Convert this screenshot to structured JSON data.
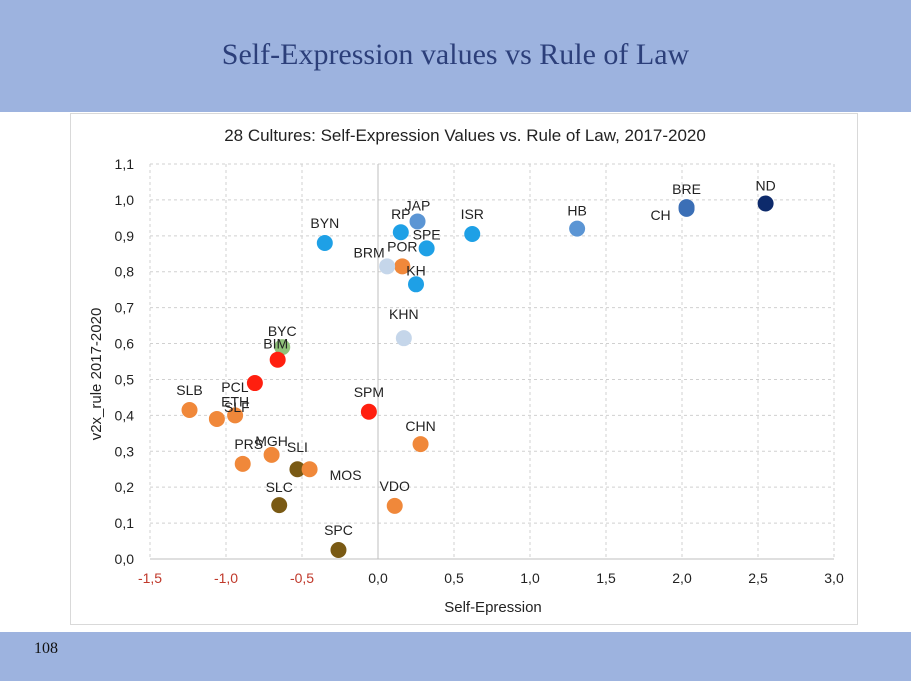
{
  "slide": {
    "title": "Self-Expression values vs Rule of Law",
    "page_number": "108"
  },
  "colors": {
    "header_band": "#9db3df",
    "title_text": "#2c3f7a",
    "negative_tick": "#c0392b"
  },
  "chart_data": {
    "type": "scatter",
    "title": "28 Cultures: Self-Expression Values vs. Rule of Law, 2017-2020",
    "xlabel": "Self-Epression",
    "ylabel": "v2x_rule 2017-2020",
    "xlim": [
      -1.5,
      3.0
    ],
    "ylim": [
      0.0,
      1.1
    ],
    "x_ticks": [
      "-1,5",
      "-1,0",
      "-0,5",
      "0,0",
      "0,5",
      "1,0",
      "1,5",
      "2,0",
      "2,5",
      "3,0"
    ],
    "x_tick_values": [
      -1.5,
      -1.0,
      -0.5,
      0.0,
      0.5,
      1.0,
      1.5,
      2.0,
      2.5,
      3.0
    ],
    "y_ticks": [
      "0,0",
      "0,1",
      "0,2",
      "0,3",
      "0,4",
      "0,5",
      "0,6",
      "0,7",
      "0,8",
      "0,9",
      "1,0",
      "1,1"
    ],
    "y_tick_values": [
      0.0,
      0.1,
      0.2,
      0.3,
      0.4,
      0.5,
      0.6,
      0.7,
      0.8,
      0.9,
      1.0,
      1.1
    ],
    "grid": "horizontal and vertical dashed",
    "legend": "none",
    "points": [
      {
        "label": "ND",
        "x": 2.55,
        "y": 0.99,
        "color": "#0d2a6b"
      },
      {
        "label": "BRE",
        "x": 2.03,
        "y": 0.98,
        "color": "#3b6fb6"
      },
      {
        "label": "CH",
        "x": 2.03,
        "y": 0.975,
        "color": "#3b6fb6"
      },
      {
        "label": "HB",
        "x": 1.31,
        "y": 0.92,
        "color": "#5b95d4"
      },
      {
        "label": "ISR",
        "x": 0.62,
        "y": 0.905,
        "color": "#1ea0e6"
      },
      {
        "label": "JAP",
        "x": 0.26,
        "y": 0.94,
        "color": "#5b95d4"
      },
      {
        "label": "RP",
        "x": 0.15,
        "y": 0.91,
        "color": "#1ea0e6"
      },
      {
        "label": "SPE",
        "x": 0.32,
        "y": 0.865,
        "color": "#1ea0e6"
      },
      {
        "label": "BYN",
        "x": -0.35,
        "y": 0.88,
        "color": "#1ea0e6"
      },
      {
        "label": "POR",
        "x": 0.16,
        "y": 0.815,
        "color": "#f0883a"
      },
      {
        "label": "BRM",
        "x": 0.06,
        "y": 0.815,
        "color": "#c5d6ea"
      },
      {
        "label": "KH",
        "x": 0.25,
        "y": 0.765,
        "color": "#1ea0e6"
      },
      {
        "label": "KHN",
        "x": 0.17,
        "y": 0.615,
        "color": "#c5d6ea"
      },
      {
        "label": "BYC",
        "x": -0.63,
        "y": 0.59,
        "color": "#8fc27a"
      },
      {
        "label": "BIM",
        "x": -0.66,
        "y": 0.555,
        "color": "#ff1f0f"
      },
      {
        "label": "PCL",
        "x": -0.81,
        "y": 0.49,
        "color": "#ff1f0f"
      },
      {
        "label": "SLB",
        "x": -1.24,
        "y": 0.415,
        "color": "#f0883a"
      },
      {
        "label": "SLF",
        "x": -1.06,
        "y": 0.39,
        "color": "#f0883a"
      },
      {
        "label": "ETH",
        "x": -0.94,
        "y": 0.4,
        "color": "#f0883a"
      },
      {
        "label": "SPM",
        "x": -0.06,
        "y": 0.41,
        "color": "#ff1f0f"
      },
      {
        "label": "CHN",
        "x": 0.28,
        "y": 0.32,
        "color": "#f0883a"
      },
      {
        "label": "PRS",
        "x": -0.89,
        "y": 0.265,
        "color": "#f0883a"
      },
      {
        "label": "MGH",
        "x": -0.7,
        "y": 0.29,
        "color": "#f0883a"
      },
      {
        "label": "SLI",
        "x": -0.53,
        "y": 0.25,
        "color": "#7a5a14"
      },
      {
        "label": "MOS",
        "x": -0.45,
        "y": 0.25,
        "color": "#f0883a"
      },
      {
        "label": "SLC",
        "x": -0.65,
        "y": 0.15,
        "color": "#7a5a14"
      },
      {
        "label": "VDO",
        "x": 0.11,
        "y": 0.148,
        "color": "#f0883a"
      },
      {
        "label": "SPC",
        "x": -0.26,
        "y": 0.025,
        "color": "#7a5a14"
      }
    ]
  }
}
